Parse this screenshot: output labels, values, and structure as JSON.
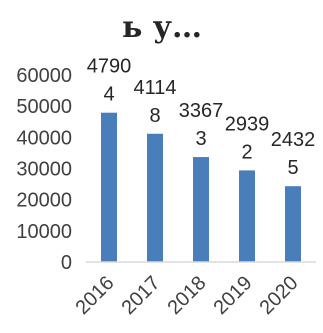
{
  "chart_data": {
    "type": "bar",
    "title": "ь у…",
    "xlabel": "",
    "ylabel": "",
    "categories": [
      "2016",
      "2017",
      "2018",
      "2019",
      "2020"
    ],
    "series": [
      {
        "values": [
          47904,
          41148,
          33673,
          29392,
          24325
        ],
        "data_labels": [
          [
            "4790",
            "4"
          ],
          [
            "4114",
            "8"
          ],
          [
            "3367",
            "3"
          ],
          [
            "2939",
            "2"
          ],
          [
            "2432",
            "5"
          ]
        ]
      }
    ],
    "ylim": [
      0,
      60000
    ],
    "yticks": [
      0,
      10000,
      20000,
      30000,
      40000,
      50000,
      60000
    ],
    "ytick_labels": [
      "0",
      "10000",
      "20000",
      "30000",
      "40000",
      "50000",
      "60000"
    ],
    "grid": false,
    "legend": "none",
    "colors": {
      "bar": "#4a7ebb",
      "axis": "#d9d9d9",
      "text": "#404040"
    }
  }
}
